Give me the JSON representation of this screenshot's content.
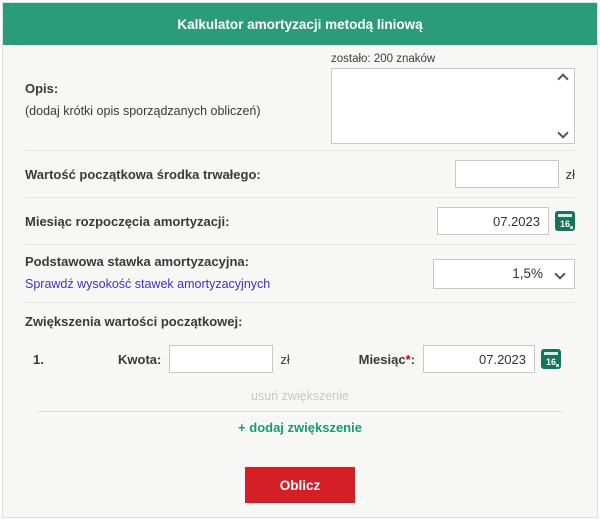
{
  "header": {
    "title": "Kalkulator amortyzacji metodą liniową"
  },
  "opis": {
    "label": "Opis:",
    "hint": "(dodaj krótki opis sporządzanych obliczeń)",
    "chars_left": "zostało: 200 znaków",
    "value": ""
  },
  "wartosc": {
    "label": "Wartość początkowa środka trwałego:",
    "value": "",
    "suffix": "zł"
  },
  "miesiac": {
    "label": "Miesiąc rozpoczęcia amortyzacji:",
    "value": "07.2023",
    "calendar_day": "16"
  },
  "stawka": {
    "label": "Podstawowa stawka amortyzacyjna:",
    "link": "Sprawdź wysokość stawek amortyzacyjnych",
    "selected": "1,5%"
  },
  "zwiekszenia": {
    "label": "Zwiększenia wartości początkowej:",
    "rows": [
      {
        "index": "1.",
        "kwota_label": "Kwota:",
        "kwota_value": "",
        "kwota_suffix": "zł",
        "miesiac_label": "Miesiąc",
        "required_mark": "*",
        "colon": ":",
        "miesiac_value": "07.2023",
        "calendar_day": "16"
      }
    ],
    "remove_label": "usuń zwiększenie",
    "add_label": "+ dodaj zwiększenie"
  },
  "submit": {
    "label": "Oblicz"
  },
  "icons": {
    "calendar": "calendar-16-icon",
    "select_chevron": "chevron-down-icon",
    "scroll_up": "chevron-up-icon",
    "scroll_down": "chevron-down-icon"
  },
  "colors": {
    "header_green": "#2a9d78",
    "button_red": "#d41f26",
    "link_blue": "#3b32cb",
    "add_green": "#189a70",
    "disabled_gray": "#c8c8c8",
    "calendar_green": "#17735c",
    "body_bg": "#f7f7f6"
  }
}
